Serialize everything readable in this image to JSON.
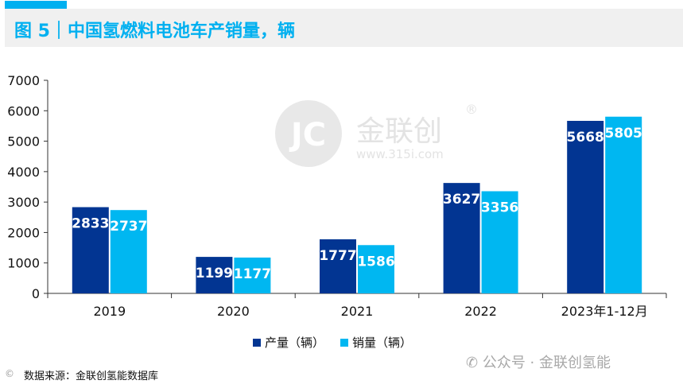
{
  "header": {
    "title": "图 5｜中国氢燃料电池车产销量，辆"
  },
  "colors": {
    "production": "#023592",
    "sales": "#00b7f1",
    "accent": "#00b0f0",
    "axis": "#333333"
  },
  "chart_data": {
    "type": "bar",
    "title": "图 5｜中国氢燃料电池车产销量，辆",
    "xlabel": "",
    "ylabel": "",
    "categories": [
      "2019",
      "2020",
      "2021",
      "2022",
      "2023年1-12月"
    ],
    "series": [
      {
        "name": "产量（辆）",
        "values": [
          2833,
          1199,
          1777,
          3627,
          5668
        ]
      },
      {
        "name": "销量（辆）",
        "values": [
          2737,
          1177,
          1586,
          3356,
          5805
        ]
      }
    ],
    "ylim": [
      0,
      7000
    ],
    "yticks": [
      0,
      1000,
      2000,
      3000,
      4000,
      5000,
      6000,
      7000
    ],
    "grid": false,
    "legend_position": "bottom"
  },
  "watermark": {
    "logo_text": "金联创",
    "url": "www.315i.com",
    "account": "公众号 · 金联创氢能"
  },
  "source": {
    "text": "数据来源：金联创氢能数据库"
  }
}
